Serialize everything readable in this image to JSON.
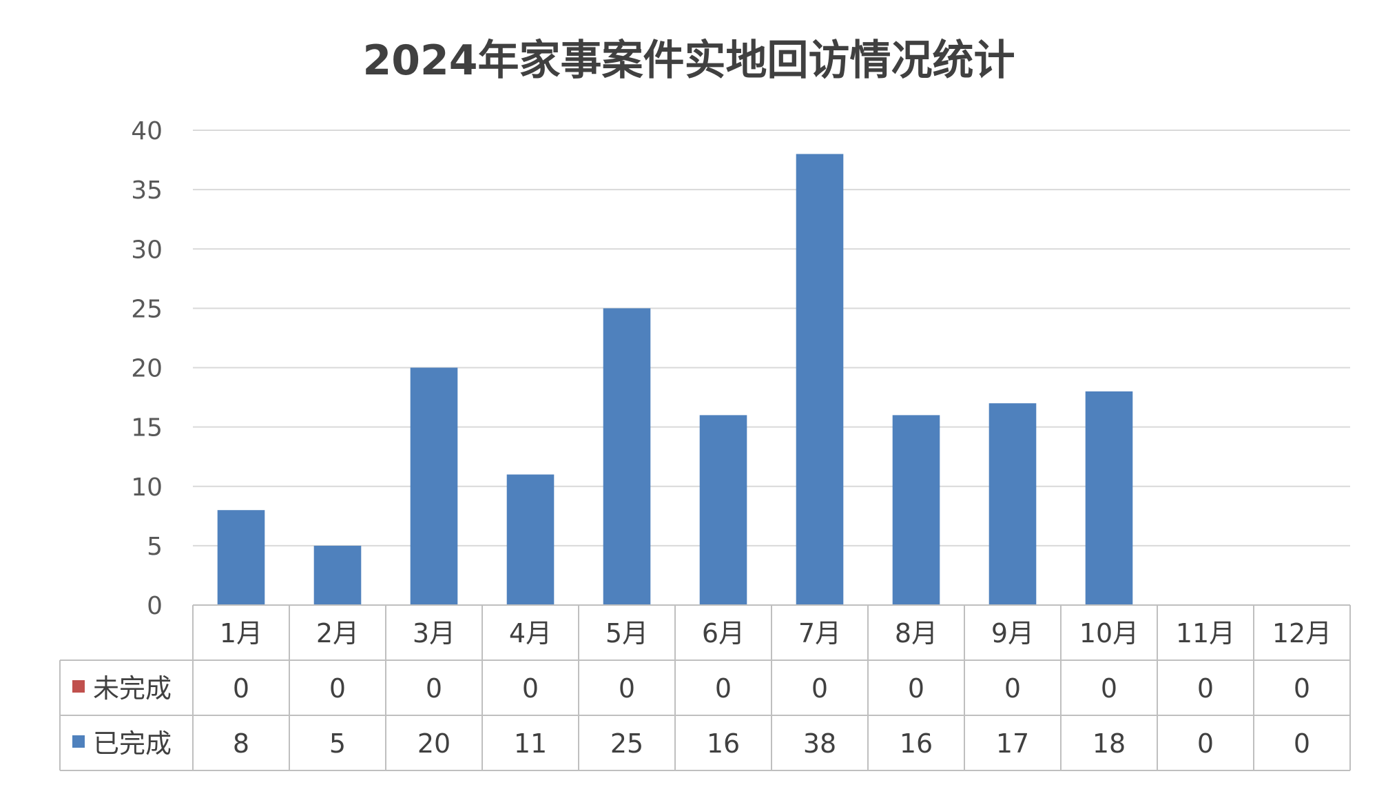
{
  "chart_data": {
    "type": "bar",
    "title": "2024年家事案件实地回访情况统计",
    "categories": [
      "1月",
      "2月",
      "3月",
      "4月",
      "5月",
      "6月",
      "7月",
      "8月",
      "9月",
      "10月",
      "11月",
      "12月"
    ],
    "series": [
      {
        "name": "未完成",
        "color": "#C0504D",
        "values": [
          0,
          0,
          0,
          0,
          0,
          0,
          0,
          0,
          0,
          0,
          0,
          0
        ]
      },
      {
        "name": "已完成",
        "color": "#4F81BD",
        "values": [
          8,
          5,
          20,
          11,
          25,
          16,
          38,
          16,
          17,
          18,
          0,
          0
        ]
      }
    ],
    "ylim": [
      0,
      40
    ],
    "yticks": [
      0,
      5,
      10,
      15,
      20,
      25,
      30,
      35,
      40
    ],
    "grid": true,
    "legend": "data-table"
  }
}
